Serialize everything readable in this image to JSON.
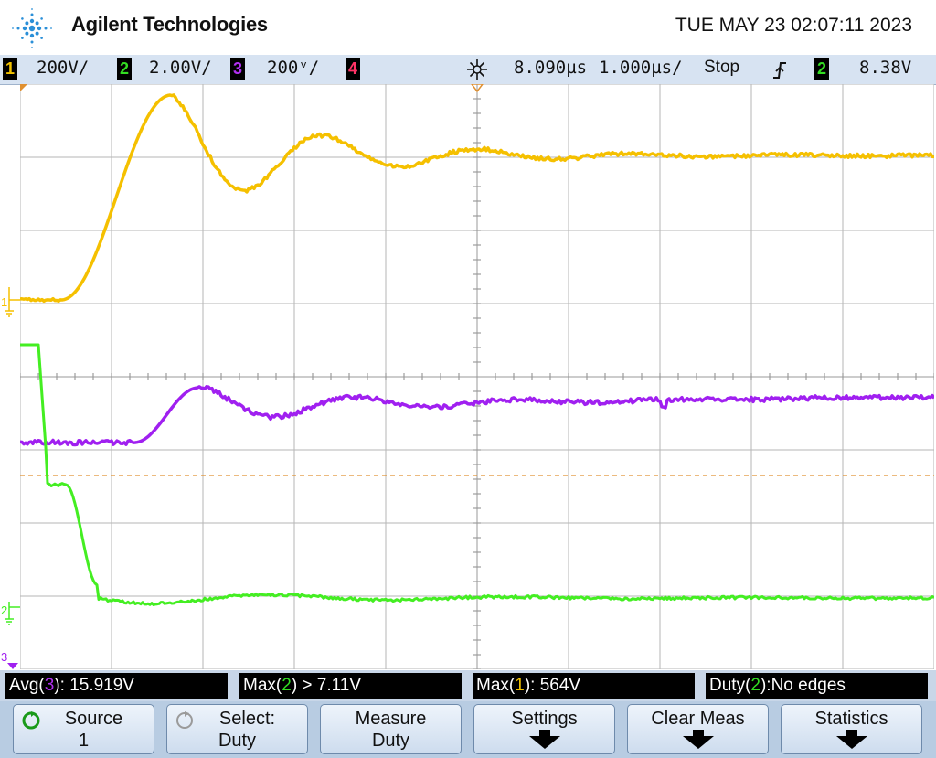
{
  "header": {
    "brand": "Agilent Technologies",
    "datetime": "TUE MAY 23 02:07:11 2023"
  },
  "status_bar": {
    "ch1": {
      "num": "1",
      "scale": "200V/",
      "color": "#f2c200"
    },
    "ch2": {
      "num": "2",
      "scale": "2.00V/",
      "color": "#33dd22"
    },
    "ch3": {
      "num": "3",
      "scale": "200ᵛ/",
      "color": "#b030f0"
    },
    "ch4": {
      "num": "4",
      "color": "#ff3366"
    },
    "trigger_delay": "8.090µs",
    "timebase": "1.000µs/",
    "run_state": "Stop",
    "trigger_source": "2",
    "trigger_level": "8.38V",
    "trigger_icon": "trigger-edge-icon"
  },
  "display": {
    "ch1_marker": "1",
    "ch2_marker": "2",
    "ch3_marker": "3",
    "colors": {
      "ch1": "#f5c000",
      "ch2": "#44ee22",
      "ch3": "#a020f0",
      "grid": "#b5b5b5",
      "trigger_line": "#e09030"
    }
  },
  "measurements": [
    {
      "prefix": "Avg(",
      "ch": "3",
      "suffix": "): 15.919V",
      "ch_color": "#b030f0"
    },
    {
      "prefix": "Max(",
      "ch": "2",
      "suffix": ") > 7.11V",
      "ch_color": "#33dd22"
    },
    {
      "prefix": "Max(",
      "ch": "1",
      "suffix": "): 564V",
      "ch_color": "#f2c200"
    },
    {
      "prefix": "Duty(",
      "ch": "2",
      "suffix": "):No edges",
      "ch_color": "#33dd22"
    }
  ],
  "softkeys": [
    {
      "line1": "Source",
      "line2": "1",
      "icon": "rotate-knob-icon"
    },
    {
      "line1": "Select:",
      "line2": "Duty",
      "icon": "rotate-knob-icon"
    },
    {
      "line1": "Measure",
      "line2": "Duty"
    },
    {
      "line1": "Settings",
      "icon": "down-arrow-icon"
    },
    {
      "line1": "Clear Meas",
      "icon": "down-arrow-icon"
    },
    {
      "line1": "Statistics",
      "icon": "down-arrow-icon"
    }
  ]
}
